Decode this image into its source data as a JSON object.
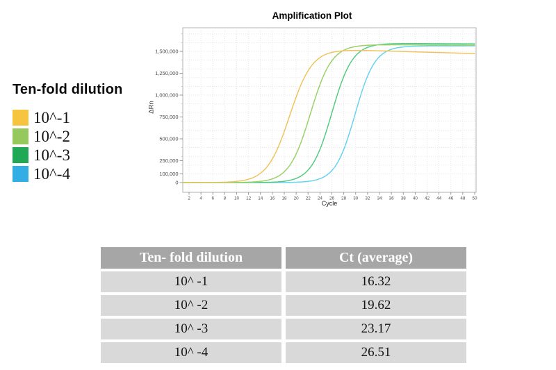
{
  "legend": {
    "title": "Ten-fold dilution",
    "items": [
      {
        "label": "10^-1",
        "color": "#F7C440"
      },
      {
        "label": "10^-2",
        "color": "#95C95D"
      },
      {
        "label": "10^-3",
        "color": "#21A857"
      },
      {
        "label": "10^-4",
        "color": "#33AEE4"
      }
    ]
  },
  "chart_data": {
    "type": "line",
    "title": "Amplification Plot",
    "xlabel": "Cycle",
    "ylabel": "ΔRn",
    "xlim": [
      1,
      50
    ],
    "ylim": [
      0,
      1770000
    ],
    "y_axis_scale": "linear",
    "grid": "dotted",
    "x_ticks": [
      2,
      4,
      6,
      8,
      10,
      12,
      14,
      16,
      18,
      20,
      22,
      24,
      26,
      28,
      30,
      32,
      34,
      36,
      38,
      40,
      42,
      44,
      46,
      48,
      50
    ],
    "y_ticks": [
      {
        "value": 0,
        "label": "0"
      },
      {
        "value": 100000,
        "label": "100,000"
      },
      {
        "value": 250000,
        "label": "250,000"
      },
      {
        "value": 500000,
        "label": "500,000"
      },
      {
        "value": 750000,
        "label": "750,000"
      },
      {
        "value": 1000000,
        "label": "1,000,000"
      },
      {
        "value": 1250000,
        "label": "1,250,000"
      },
      {
        "value": 1500000,
        "label": "1,500,000"
      }
    ],
    "series": [
      {
        "name": "10^-1",
        "ct": 16.32,
        "color": "#EFC45F",
        "sigmoid": {
          "midpoint": 18.9,
          "steepness": 0.53,
          "plateau": 1525000,
          "late_drift_per_cycle": 2000
        }
      },
      {
        "name": "10^-2",
        "ct": 19.62,
        "color": "#9AD168",
        "sigmoid": {
          "midpoint": 22.4,
          "steepness": 0.56,
          "plateau": 1578000,
          "late_drift_per_cycle": 300
        }
      },
      {
        "name": "10^-3",
        "ct": 23.17,
        "color": "#55CB82",
        "sigmoid": {
          "midpoint": 26.0,
          "steepness": 0.58,
          "plateau": 1593000,
          "late_drift_per_cycle": 400
        }
      },
      {
        "name": "10^-4",
        "ct": 26.51,
        "color": "#67D2F2",
        "sigmoid": {
          "midpoint": 29.9,
          "steepness": 0.6,
          "plateau": 1563000,
          "late_drift_per_cycle": 0
        }
      }
    ]
  },
  "table": {
    "columns": [
      "Ten- fold dilution",
      "Ct (average)"
    ],
    "rows": [
      {
        "dilution": "10^ -1",
        "ct": "16.32"
      },
      {
        "dilution": "10^ -2",
        "ct": "19.62"
      },
      {
        "dilution": "10^ -3",
        "ct": "23.17"
      },
      {
        "dilution": "10^ -4",
        "ct": "26.51"
      }
    ],
    "header_bg": "#A6A6A6",
    "header_text_color": "#FFFFFF",
    "row_bg": "#D9D9D9"
  },
  "colors": {
    "page_bg": "#FFFFFF",
    "plot_border": "#B3B3B3",
    "grid_line": "#DCDCDC",
    "tick_mark": "#8C8C8C",
    "tick_text": "#4A4A4A"
  }
}
